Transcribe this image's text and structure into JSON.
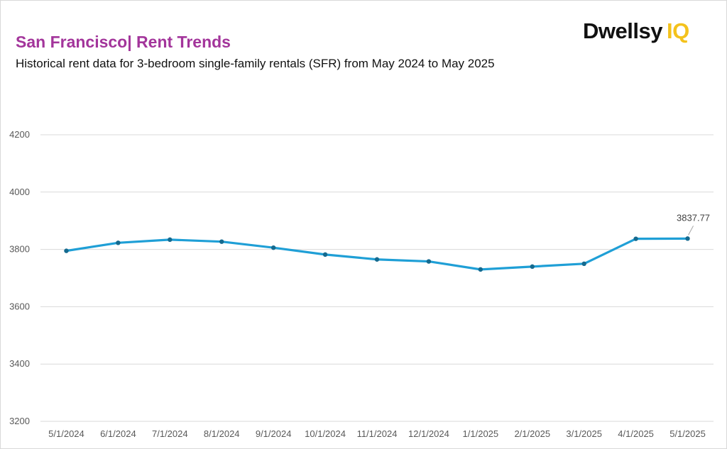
{
  "header": {
    "title": "San Francisco|  Rent Trends",
    "subtitle": "Historical rent data for 3-bedroom single-family rentals (SFR) from May 2024 to May 2025"
  },
  "logo": {
    "word": "Dwellsy",
    "suffix": "IQ"
  },
  "colors": {
    "title": "#a3359b",
    "line": "#1f9fd6",
    "marker": "#156a8f",
    "grid": "#d9d9d9",
    "logo_accent": "#f4c21c"
  },
  "chart_data": {
    "type": "line",
    "categories": [
      "5/1/2024",
      "6/1/2024",
      "7/1/2024",
      "8/1/2024",
      "9/1/2024",
      "10/1/2024",
      "11/1/2024",
      "12/1/2024",
      "1/1/2025",
      "2/1/2025",
      "3/1/2025",
      "4/1/2025",
      "5/1/2025"
    ],
    "series": [
      {
        "values": [
          3795,
          3823,
          3834,
          3827,
          3806,
          3782,
          3765,
          3758,
          3730,
          3740,
          3750,
          3837,
          3837.77
        ]
      }
    ],
    "ylim": [
      3200,
      4200
    ],
    "yticks": [
      3200,
      3400,
      3600,
      3800,
      4000,
      4200
    ],
    "grid": true,
    "legend": "none",
    "data_labels": [
      {
        "index": 12,
        "text": "3837.77"
      }
    ]
  }
}
